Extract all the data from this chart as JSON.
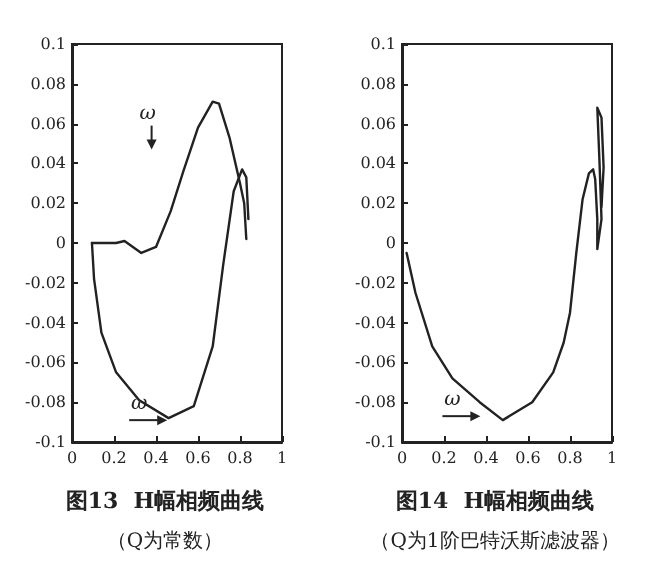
{
  "chart_data": [
    {
      "type": "line",
      "title": "图13  H幅相频曲线",
      "subtitle": "（Q为常数）",
      "xlim": [
        0,
        1
      ],
      "ylim": [
        -0.1,
        0.1
      ],
      "xticks": [
        0,
        0.2,
        0.4,
        0.6,
        0.8,
        1
      ],
      "yticks": [
        -0.1,
        -0.08,
        -0.06,
        -0.04,
        -0.02,
        0,
        0.02,
        0.04,
        0.06,
        0.08,
        0.1
      ],
      "grid": false,
      "marker": "none",
      "line_style": "solid",
      "annotations": [
        "ω",
        "ω"
      ],
      "series": [
        {
          "color": "#222222",
          "x": [
            0.095,
            0.105,
            0.14,
            0.21,
            0.32,
            0.46,
            0.58,
            0.67,
            0.72,
            0.77,
            0.81,
            0.83,
            0.84
          ],
          "values": [
            0,
            -0.018,
            -0.045,
            -0.065,
            -0.079,
            -0.088,
            -0.082,
            -0.052,
            -0.011,
            0.026,
            0.037,
            0.033,
            0.012
          ]
        },
        {
          "color": "#222222",
          "x": [
            0.83,
            0.82,
            0.8,
            0.75,
            0.7,
            0.67,
            0.6,
            0.53,
            0.47,
            0.4,
            0.33,
            0.25,
            0.21,
            0.095
          ],
          "values": [
            0.002,
            0.02,
            0.03,
            0.053,
            0.07,
            0.071,
            0.058,
            0.036,
            0.016,
            -0.002,
            -0.005,
            0.001,
            0,
            0
          ]
        }
      ]
    },
    {
      "type": "line",
      "title": "图14  H幅相频曲线",
      "subtitle": "（Q为1阶巴特沃斯滤波器）",
      "xlim": [
        0,
        1
      ],
      "ylim": [
        -0.1,
        0.1
      ],
      "xticks": [
        0,
        0.2,
        0.4,
        0.6,
        0.8,
        1
      ],
      "yticks": [
        -0.1,
        -0.08,
        -0.06,
        -0.04,
        -0.02,
        0,
        0.02,
        0.04,
        0.06,
        0.08,
        0.1
      ],
      "grid": false,
      "marker": "none",
      "line_style": "solid",
      "annotations": [
        "ω"
      ],
      "series": [
        {
          "color": "#222222",
          "x": [
            0.022,
            0.064,
            0.144,
            0.24,
            0.37,
            0.48,
            0.62,
            0.72,
            0.77,
            0.8,
            0.83,
            0.86,
            0.89,
            0.91,
            0.92,
            0.93,
            0.93,
            0.95,
            0.94,
            0.93,
            0.95,
            0.96,
            0.95
          ],
          "values": [
            -0.005,
            -0.025,
            -0.052,
            -0.068,
            -0.08,
            -0.089,
            -0.08,
            -0.065,
            -0.05,
            -0.035,
            -0.005,
            0.022,
            0.035,
            0.037,
            0.032,
            0.012,
            -0.003,
            0.012,
            0.042,
            0.068,
            0.063,
            0.038,
            0.018
          ]
        }
      ]
    }
  ]
}
